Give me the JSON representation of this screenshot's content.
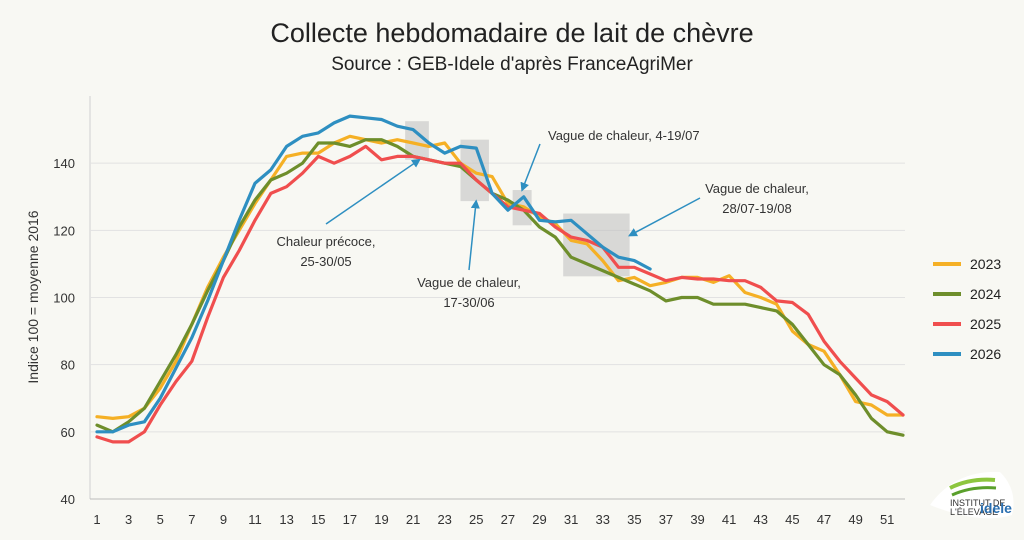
{
  "chart_data": {
    "type": "line",
    "title": "Collecte hebdomadaire de lait de chèvre",
    "subtitle": "Source : GEB-Idele d'après FranceAgriMer",
    "ylabel": "Indice 100 = moyenne 2016",
    "xlabel": "",
    "ylim": [
      40,
      160
    ],
    "yticks": [
      40,
      60,
      80,
      100,
      120,
      140
    ],
    "xlim": [
      1,
      52
    ],
    "xticks": [
      1,
      3,
      5,
      7,
      9,
      11,
      13,
      15,
      17,
      19,
      21,
      23,
      25,
      27,
      29,
      31,
      33,
      35,
      37,
      39,
      41,
      43,
      45,
      47,
      49,
      51
    ],
    "grid": "horizontal",
    "legend_position": "right",
    "series": [
      {
        "name": "2023",
        "color": "#f5b025",
        "x": [
          1,
          2,
          3,
          4,
          5,
          6,
          7,
          8,
          9,
          10,
          11,
          12,
          13,
          14,
          15,
          16,
          17,
          18,
          19,
          20,
          21,
          22,
          23,
          24,
          25,
          26,
          27,
          28,
          29,
          30,
          31,
          32,
          33,
          34,
          35,
          36,
          37,
          38,
          39,
          40,
          41,
          42,
          43,
          44,
          45,
          46,
          47,
          48,
          49,
          50,
          51,
          52
        ],
        "values": [
          64.5,
          64,
          64.5,
          67,
          73,
          81,
          92,
          103,
          112,
          120,
          128,
          135,
          142,
          143,
          143,
          146,
          148,
          147,
          146,
          147,
          146,
          145,
          146,
          140,
          137,
          136,
          128,
          127,
          124,
          122,
          117,
          116,
          111,
          105,
          106,
          103.5,
          104.5,
          106,
          106,
          104.5,
          106.5,
          101.5,
          100,
          98,
          90,
          86,
          84,
          77,
          69,
          68,
          65,
          65
        ]
      },
      {
        "name": "2024",
        "color": "#6e8e2b",
        "x": [
          1,
          2,
          3,
          4,
          5,
          6,
          7,
          8,
          9,
          10,
          11,
          12,
          13,
          14,
          15,
          16,
          17,
          18,
          19,
          20,
          21,
          22,
          23,
          24,
          25,
          26,
          27,
          28,
          29,
          30,
          31,
          32,
          33,
          34,
          35,
          36,
          37,
          38,
          39,
          40,
          41,
          42,
          43,
          44,
          45,
          46,
          47,
          48,
          49,
          50,
          51,
          52
        ],
        "values": [
          62,
          60,
          63,
          67,
          75,
          83,
          92,
          102,
          111,
          121,
          129,
          135,
          137,
          140,
          146,
          146,
          145,
          147,
          147,
          145,
          142,
          141,
          140,
          139,
          135,
          131,
          129,
          126,
          121,
          118,
          112,
          110,
          108,
          106,
          104,
          102,
          99,
          100,
          100,
          98,
          98,
          98,
          97,
          96,
          92,
          86,
          80,
          77,
          71,
          64,
          60,
          59
        ]
      },
      {
        "name": "2025",
        "color": "#f04e4e",
        "x": [
          1,
          2,
          3,
          4,
          5,
          6,
          7,
          8,
          9,
          10,
          11,
          12,
          13,
          14,
          15,
          16,
          17,
          18,
          19,
          20,
          21,
          22,
          23,
          24,
          25,
          26,
          27,
          28,
          29,
          30,
          31,
          32,
          33,
          34,
          35,
          36,
          37,
          38,
          39,
          40,
          41,
          42,
          43,
          44,
          45,
          46,
          47,
          48,
          49,
          50,
          51,
          52
        ],
        "values": [
          58.5,
          57,
          57,
          60,
          68,
          75,
          81,
          94,
          106,
          114,
          123,
          131,
          133,
          137,
          142,
          140,
          142,
          145,
          141,
          142,
          142,
          141,
          140,
          140,
          135,
          131,
          127,
          126,
          125,
          121,
          118,
          117,
          115,
          109,
          109,
          107,
          105,
          106,
          105.5,
          105.5,
          105,
          105,
          103,
          99,
          98.5,
          95,
          87,
          81,
          76,
          71,
          69,
          65
        ]
      },
      {
        "name": "2026",
        "color": "#2e8fc1",
        "x": [
          1,
          2,
          3,
          4,
          5,
          6,
          7,
          8,
          9,
          10,
          11,
          12,
          13,
          14,
          15,
          16,
          17,
          18,
          19,
          20,
          21,
          22,
          23,
          24,
          25,
          26,
          27,
          28,
          29,
          30,
          31,
          32,
          33,
          34,
          35,
          36
        ],
        "values": [
          60,
          60,
          62,
          63,
          70,
          79,
          88,
          99,
          111,
          123,
          134,
          138,
          145,
          148,
          149,
          152,
          154,
          153.5,
          153,
          151,
          150,
          146,
          143,
          145,
          144.5,
          131,
          126,
          130,
          123,
          122.5,
          123,
          119,
          115,
          112,
          111,
          108.5
        ]
      }
    ],
    "annotations": [
      {
        "text": [
          "Chaleur précoce,",
          "25-30/05"
        ],
        "weeks": [
          20.5,
          22
        ]
      },
      {
        "text": [
          "Vague de chaleur,",
          "17-30/06"
        ],
        "weeks": [
          24,
          25.8
        ]
      },
      {
        "text": [
          "Vague de chaleur, 4-19/07"
        ],
        "weeks": [
          27.3,
          28.5
        ]
      },
      {
        "text": [
          "Vague de chaleur,",
          "28/07-19/08"
        ],
        "weeks": [
          30.5,
          34.7
        ]
      }
    ]
  },
  "logo": {
    "line1": "INSTITUT DE",
    "line2": "L'ÉLEVAGE",
    "brand": "idele"
  }
}
